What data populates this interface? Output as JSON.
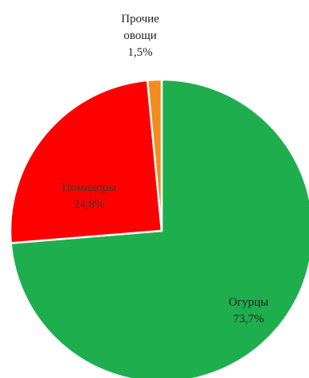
{
  "chart_data": {
    "type": "pie",
    "title": "",
    "start_angle_deg": 0,
    "direction": "clockwise",
    "slices": [
      {
        "name": "Огурцы",
        "value": 73.7,
        "label": "73,7%",
        "color": "#1fae4e",
        "label_color": "#1f1f1f"
      },
      {
        "name": "Помидоры",
        "value": 24.8,
        "label": "24,8%",
        "color": "#ff0000",
        "label_color": "#3a3a3a"
      },
      {
        "name": "Прочие овощи",
        "name_lines": [
          "Прочие",
          "овощи"
        ],
        "value": 1.5,
        "label": "1,5%",
        "color": "#f28c1e",
        "label_color": "#1f1f1f"
      }
    ],
    "legend": "none",
    "slice_border_color": "#ffffff"
  }
}
